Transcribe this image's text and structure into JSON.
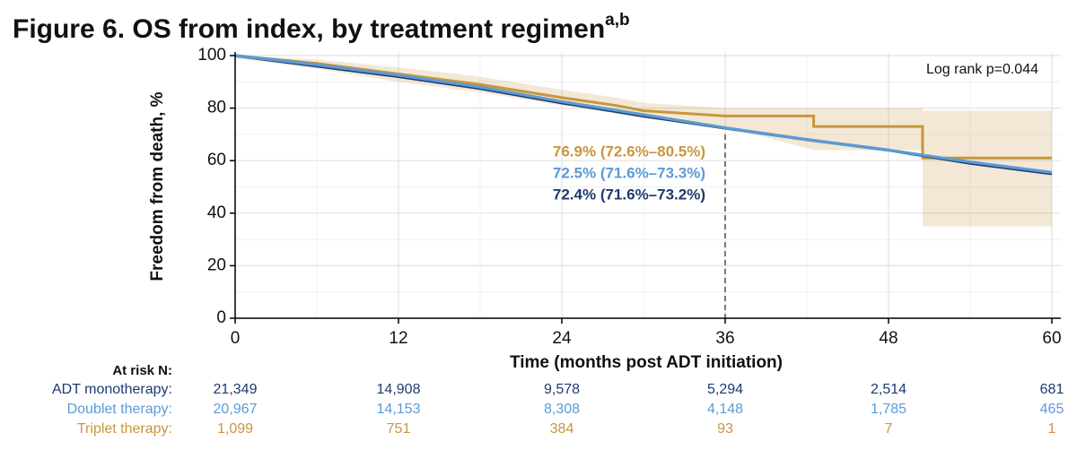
{
  "chart_data": {
    "type": "line",
    "title": "Figure 6. OS from index, by treatment regimen",
    "title_superscript": "a,b",
    "x_label": "Time (months post ADT initiation)",
    "y_label": "Freedom from death, %",
    "note": "Log rank p=0.044",
    "xlim": [
      0,
      60
    ],
    "ylim": [
      0,
      100
    ],
    "xticks": [
      0,
      12,
      24,
      36,
      48,
      60
    ],
    "yticks": [
      0,
      20,
      40,
      60,
      80,
      100
    ],
    "grid": true,
    "reference_x": 36,
    "series": [
      {
        "color": "#1f3a6e",
        "x": [
          0,
          3,
          6,
          12,
          18,
          24,
          30,
          36,
          42,
          48,
          54,
          60
        ],
        "values": [
          100,
          98,
          96,
          92,
          87.5,
          82,
          77,
          72.4,
          68,
          64,
          59,
          55
        ]
      },
      {
        "color": "#5b9bd5",
        "x": [
          0,
          3,
          6,
          12,
          18,
          24,
          30,
          36,
          42,
          48,
          54,
          60
        ],
        "values": [
          100,
          98.3,
          96.5,
          92.5,
          88,
          82.5,
          77.5,
          72.5,
          68,
          64,
          59.5,
          55.5
        ]
      },
      {
        "color": "#c8963e",
        "x": [
          0,
          6,
          12,
          18,
          24,
          28,
          30,
          36,
          42.5,
          42.5,
          50.5,
          50.5,
          60
        ],
        "values": [
          100,
          97,
          93,
          89,
          84,
          81,
          79,
          77,
          77,
          73,
          73,
          61,
          61
        ],
        "ci_lower": [
          99,
          95,
          90,
          86,
          81,
          78,
          76,
          73,
          64,
          64,
          64,
          35,
          35
        ],
        "ci_upper": [
          100,
          98.5,
          95.5,
          92,
          87,
          84,
          82,
          80,
          80,
          80,
          80,
          79,
          79
        ]
      }
    ],
    "annotations": [
      {
        "text": "76.9% (72.6%–80.5%)",
        "color": "#c8963e"
      },
      {
        "text": "72.5% (71.6%–73.3%)",
        "color": "#5b9bd5"
      },
      {
        "text": "72.4% (71.6%–73.2%)",
        "color": "#1f3a6e"
      }
    ],
    "risk_table": {
      "title": "At risk N:",
      "rows": [
        {
          "label": "ADT monotherapy:",
          "color": "#1f3a6e",
          "counts": [
            "21,349",
            "14,908",
            "9,578",
            "5,294",
            "2,514",
            "681"
          ]
        },
        {
          "label": "Doublet therapy:",
          "color": "#5b9bd5",
          "counts": [
            "20,967",
            "14,153",
            "8,308",
            "4,148",
            "1,785",
            "465"
          ]
        },
        {
          "label": "Triplet therapy:",
          "color": "#c8963e",
          "counts": [
            "1,099",
            "751",
            "384",
            "93",
            "7",
            "1"
          ]
        }
      ]
    }
  }
}
